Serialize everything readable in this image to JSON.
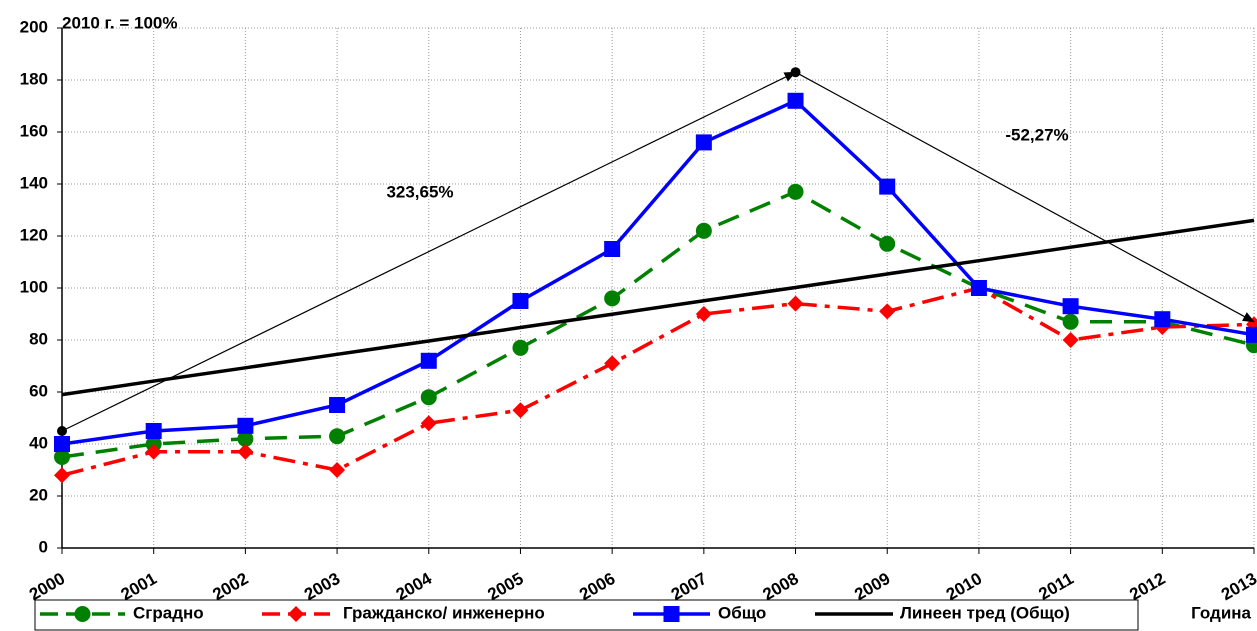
{
  "chart_data": {
    "type": "line",
    "y_label": "2010 г. = 100%",
    "x_label": "Година",
    "x": [
      2000,
      2001,
      2002,
      2003,
      2004,
      2005,
      2006,
      2007,
      2008,
      2009,
      2010,
      2011,
      2012,
      2013
    ],
    "xlim": [
      2000,
      2013
    ],
    "xticks": [
      2000,
      2001,
      2002,
      2003,
      2004,
      2005,
      2006,
      2007,
      2008,
      2009,
      2010,
      2011,
      2012,
      2013
    ],
    "ylim": [
      0,
      200
    ],
    "yticks": [
      0,
      20,
      40,
      60,
      80,
      100,
      120,
      140,
      160,
      180,
      200
    ],
    "grid": true,
    "legend": "bottom",
    "series": [
      {
        "name": "Сградно",
        "color": "#008000",
        "dash": "dashed",
        "marker": "circle",
        "values": [
          35,
          40,
          42,
          43,
          58,
          77,
          96,
          122,
          137,
          117,
          100,
          87,
          87,
          78
        ]
      },
      {
        "name": "Гражданско/ инженерно",
        "color": "#ff0000",
        "dash": "dashdot",
        "marker": "diamond",
        "values": [
          28,
          37,
          37,
          30,
          48,
          53,
          71,
          90,
          94,
          91,
          100,
          80,
          85,
          86
        ]
      },
      {
        "name": "Общо",
        "color": "#0000ff",
        "dash": "solid",
        "marker": "square",
        "values": [
          40,
          45,
          47,
          55,
          72,
          95,
          115,
          156,
          172,
          139,
          100,
          93,
          88,
          82
        ]
      },
      {
        "name": "Линеен тред (Общо)",
        "color": "#000000",
        "dash": "solid",
        "marker": "none",
        "values": [
          59,
          64.2,
          69.3,
          74.5,
          79.6,
          84.8,
          89.9,
          95.1,
          100.2,
          105.4,
          110.5,
          115.7,
          120.8,
          126
        ]
      }
    ],
    "arrows": [
      {
        "label": "323,65%",
        "x": [
          2000,
          2008
        ],
        "y": [
          45,
          183
        ]
      },
      {
        "label": "-52,27%",
        "x": [
          2008,
          2013
        ],
        "y": [
          183,
          87
        ]
      }
    ]
  }
}
